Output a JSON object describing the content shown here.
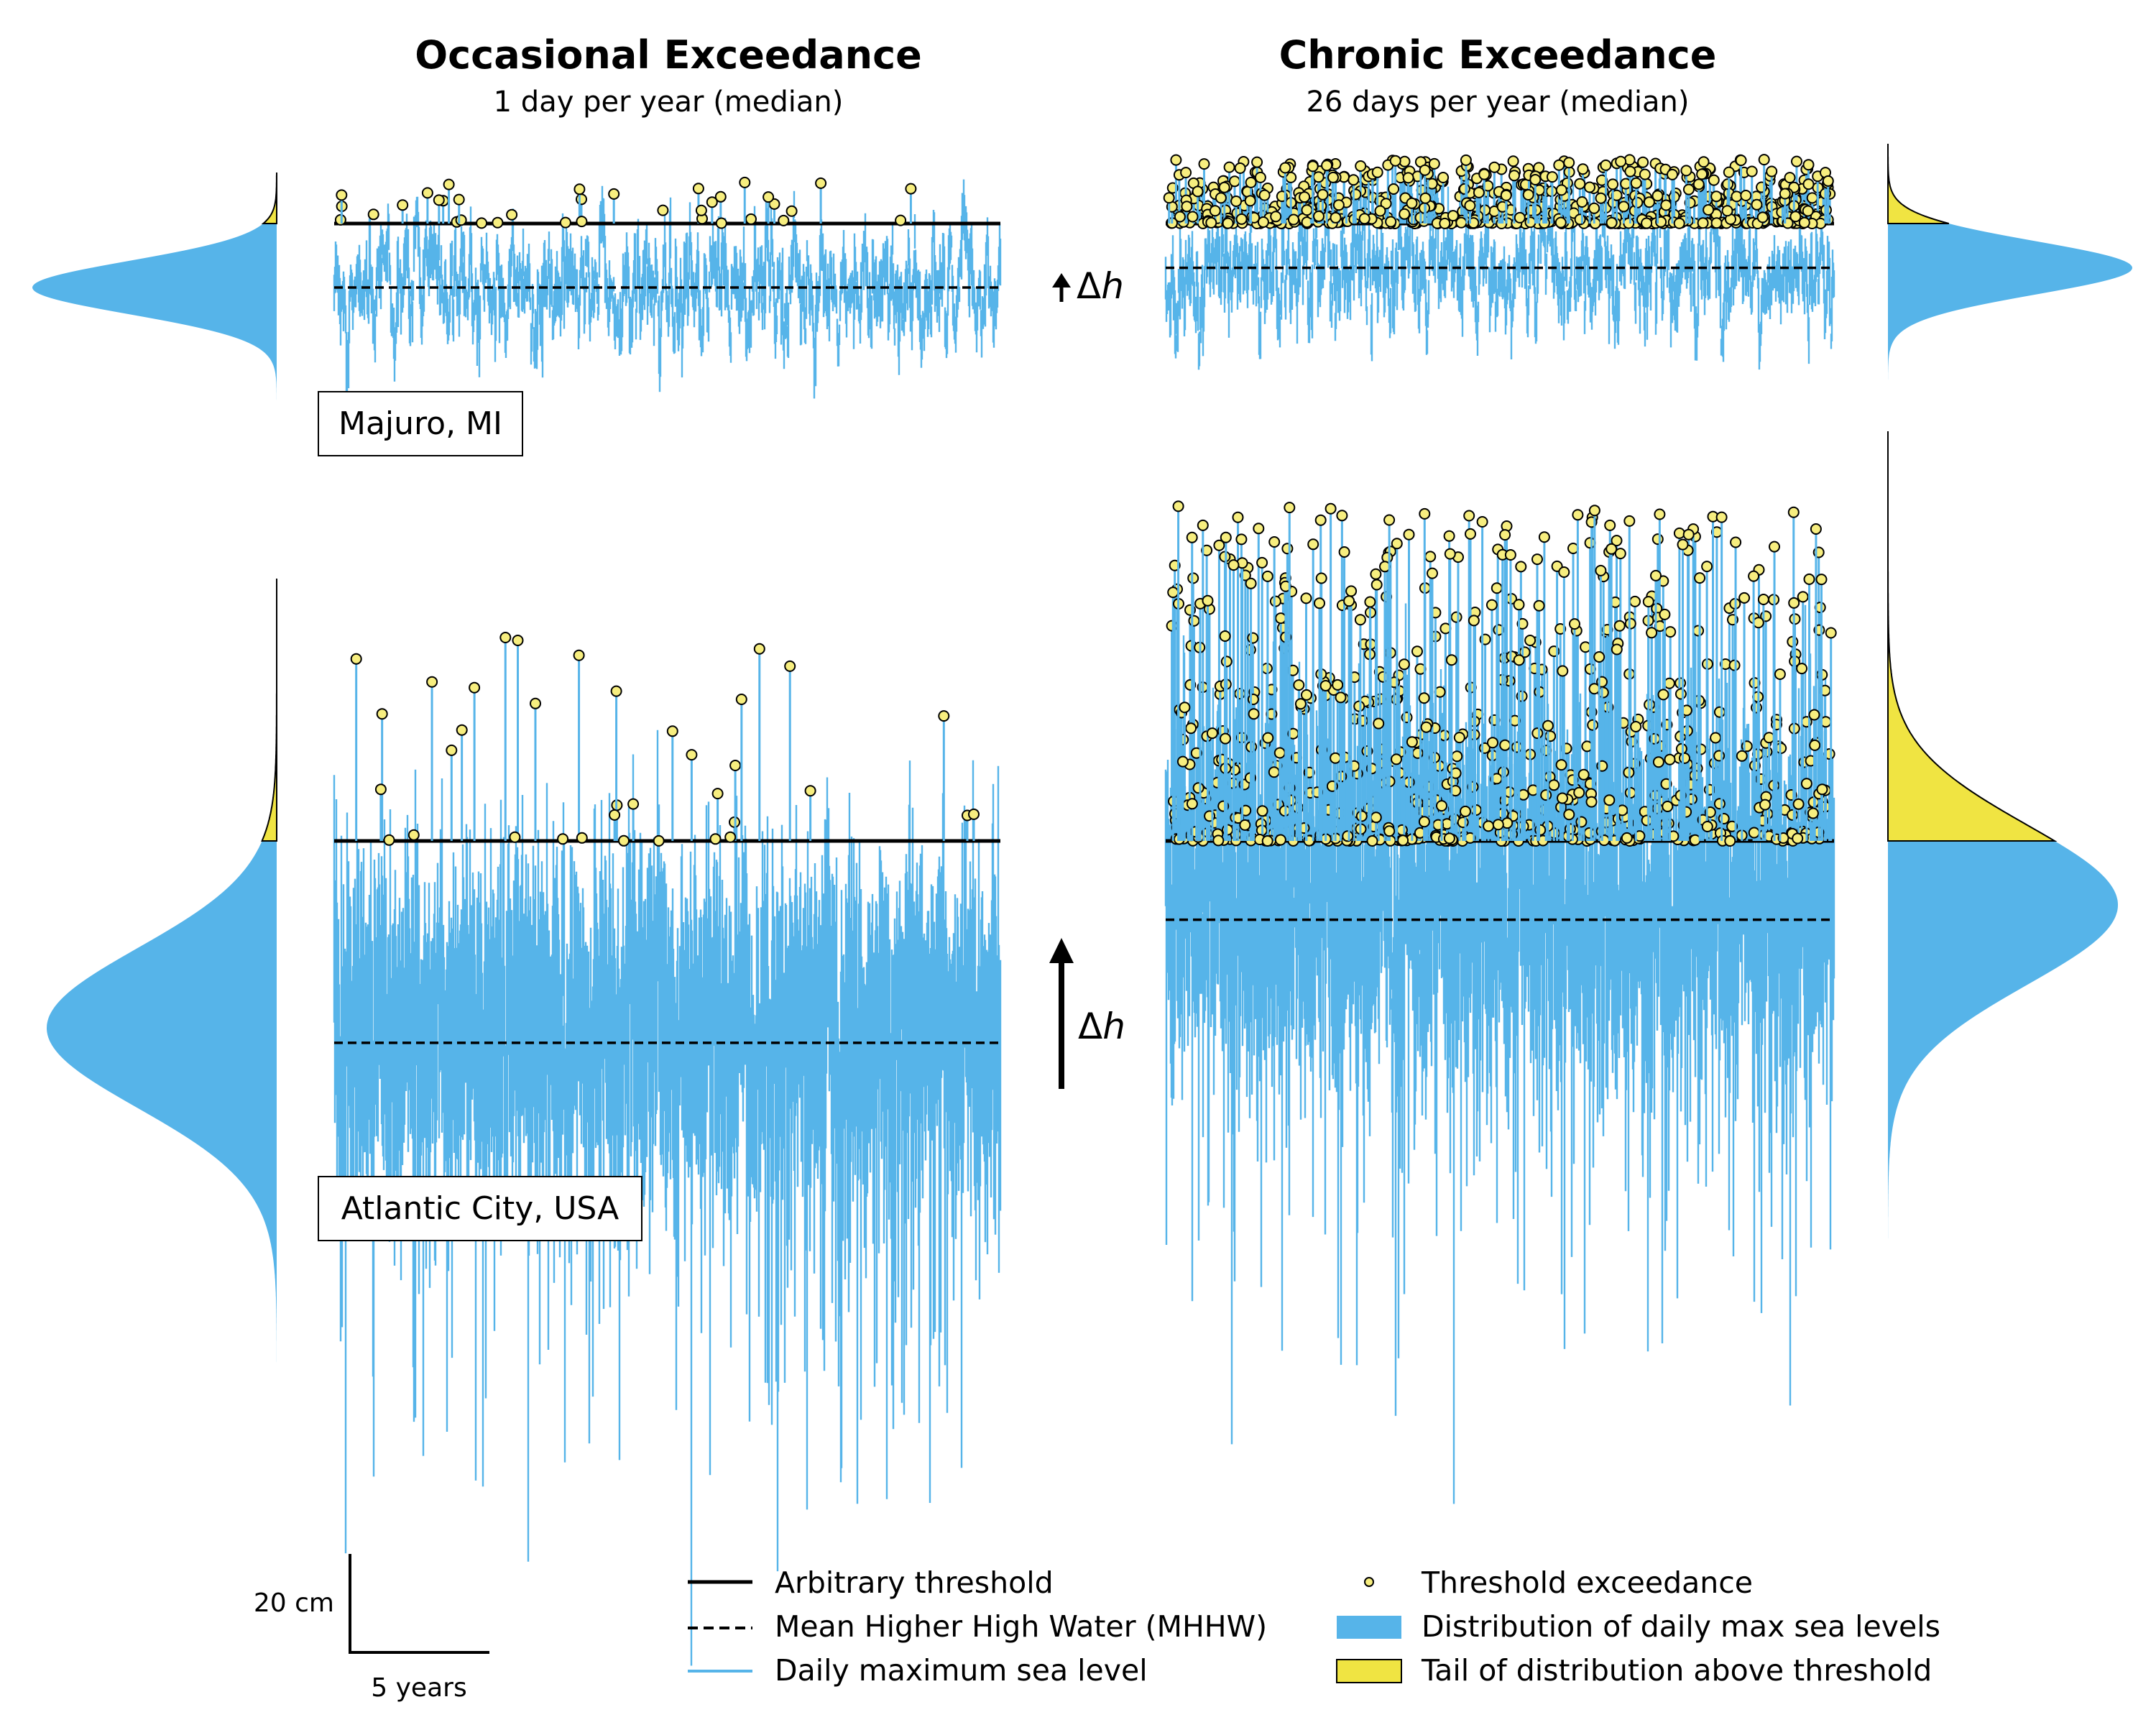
{
  "titles": {
    "left_title": "Occasional Exceedance",
    "left_subtitle": "1 day per year (median)",
    "right_title": "Chronic Exceedance",
    "right_subtitle": "26 days per year (median)"
  },
  "annotations": {
    "delta_h_symbol": "Δ",
    "delta_h_var": "h"
  },
  "scalebar": {
    "vertical_label": "20 cm",
    "horizontal_label": "5 years"
  },
  "legend": {
    "items": [
      {
        "key": "threshold",
        "label": "Arbitrary threshold"
      },
      {
        "key": "mhhw",
        "label": "Mean Higher High Water (MHHW)"
      },
      {
        "key": "daily",
        "label": "Daily maximum sea level"
      },
      {
        "key": "exceedance",
        "label": "Threshold exceedance"
      },
      {
        "key": "distribution",
        "label": "Distribution of daily max sea levels"
      },
      {
        "key": "tail",
        "label": "Tail of distribution above threshold"
      }
    ]
  },
  "colors": {
    "daily_max": "#56B4E9",
    "distribution": "#56B4E9",
    "tail": "#F0E442",
    "exceedance_marker": "#F7EE7F",
    "line": "#000000"
  },
  "chart_data": [
    {
      "type": "line",
      "panel": "Majuro, MI — occasional exceedance",
      "station": "Majuro, MI",
      "scenario": "occasional",
      "xlabel": "",
      "ylabel": "",
      "exceedance_days_per_year_median": 1,
      "threshold_above_mhhw_cm": 13,
      "daily_max_mean_below_threshold_cm": 13,
      "daily_max_spread_cm": 6,
      "peak_above_threshold_cm": 9,
      "record_length_years": 24
    },
    {
      "type": "line",
      "panel": "Majuro, MI — chronic exceedance",
      "station": "Majuro, MI",
      "scenario": "chronic",
      "xlabel": "",
      "ylabel": "",
      "exceedance_days_per_year_median": 26,
      "threshold_above_mhhw_cm": 9,
      "delta_h_cm": 4,
      "daily_max_mean_below_threshold_cm": 9,
      "daily_max_spread_cm": 6,
      "peak_above_threshold_cm": 13,
      "record_length_years": 24
    },
    {
      "type": "line",
      "panel": "Atlantic City, USA — occasional exceedance",
      "station": "Atlantic City, USA",
      "scenario": "occasional",
      "xlabel": "",
      "ylabel": "",
      "exceedance_days_per_year_median": 1,
      "threshold_above_mhhw_cm": 41,
      "daily_max_mean_below_threshold_cm": 38,
      "daily_max_spread_cm": 18,
      "peak_above_threshold_cm": 44,
      "lowest_daily_max_below_threshold_cm": 117,
      "record_length_years": 24
    },
    {
      "type": "line",
      "panel": "Atlantic City, USA — chronic exceedance",
      "station": "Atlantic City, USA",
      "scenario": "chronic",
      "xlabel": "",
      "ylabel": "",
      "exceedance_days_per_year_median": 26,
      "threshold_above_mhhw_cm": 16,
      "delta_h_cm": 25,
      "daily_max_mean_below_threshold_cm": 13,
      "daily_max_spread_cm": 18,
      "peak_above_threshold_cm": 68,
      "record_length_years": 24
    }
  ]
}
